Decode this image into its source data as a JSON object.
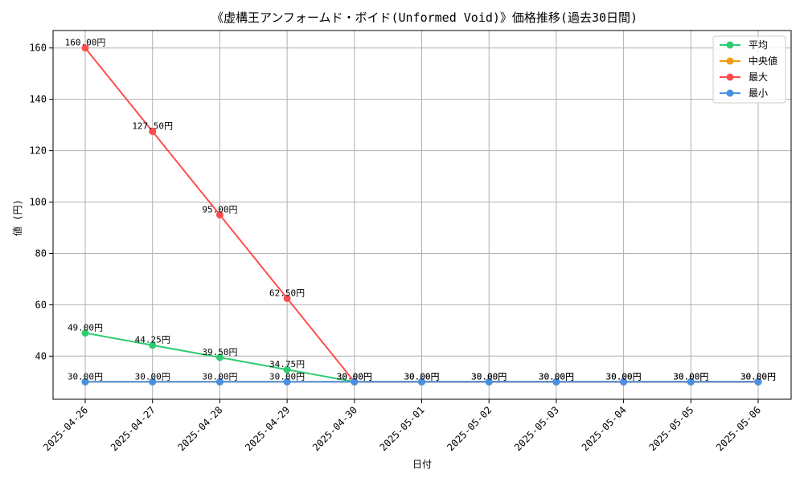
{
  "chart_data": {
    "type": "line",
    "title": "《虚構王アンフォームド・ボイド(Unformed Void)》価格推移(過去30日間)",
    "xlabel": "日付",
    "ylabel": "値 (円)",
    "categories": [
      "2025-04-26",
      "2025-04-27",
      "2025-04-28",
      "2025-04-29",
      "2025-04-30",
      "2025-05-01",
      "2025-05-02",
      "2025-05-03",
      "2025-05-04",
      "2025-05-05",
      "2025-05-06"
    ],
    "ylim": [
      23.2,
      166.8
    ],
    "yticks": [
      40,
      60,
      80,
      100,
      120,
      140,
      160
    ],
    "grid": true,
    "legend_position": "top-right",
    "value_suffix": "円",
    "series": [
      {
        "name": "平均",
        "color": "#2ecc71",
        "values": [
          49.0,
          44.25,
          39.5,
          34.75,
          30.0,
          30.0,
          30.0,
          30.0,
          30.0,
          30.0,
          30.0
        ],
        "label_indices": [
          0,
          1,
          2,
          3
        ]
      },
      {
        "name": "中央値",
        "color": "#f39c12",
        "values": [
          30.0,
          30.0,
          30.0,
          30.0,
          30.0,
          30.0,
          30.0,
          30.0,
          30.0,
          30.0,
          30.0
        ],
        "label_indices": []
      },
      {
        "name": "最大",
        "color": "#ff4d4d",
        "values": [
          160.0,
          127.5,
          95.0,
          62.5,
          30.0,
          30.0,
          30.0,
          30.0,
          30.0,
          30.0,
          30.0
        ],
        "label_indices": [
          0,
          1,
          2,
          3,
          4,
          5,
          6,
          7,
          8,
          9,
          10
        ]
      },
      {
        "name": "最小",
        "color": "#4a90e2",
        "values": [
          30.0,
          30.0,
          30.0,
          30.0,
          30.0,
          30.0,
          30.0,
          30.0,
          30.0,
          30.0,
          30.0
        ],
        "label_indices": [
          0,
          1,
          2,
          3,
          4,
          5,
          6,
          7,
          8,
          9,
          10
        ]
      }
    ]
  }
}
